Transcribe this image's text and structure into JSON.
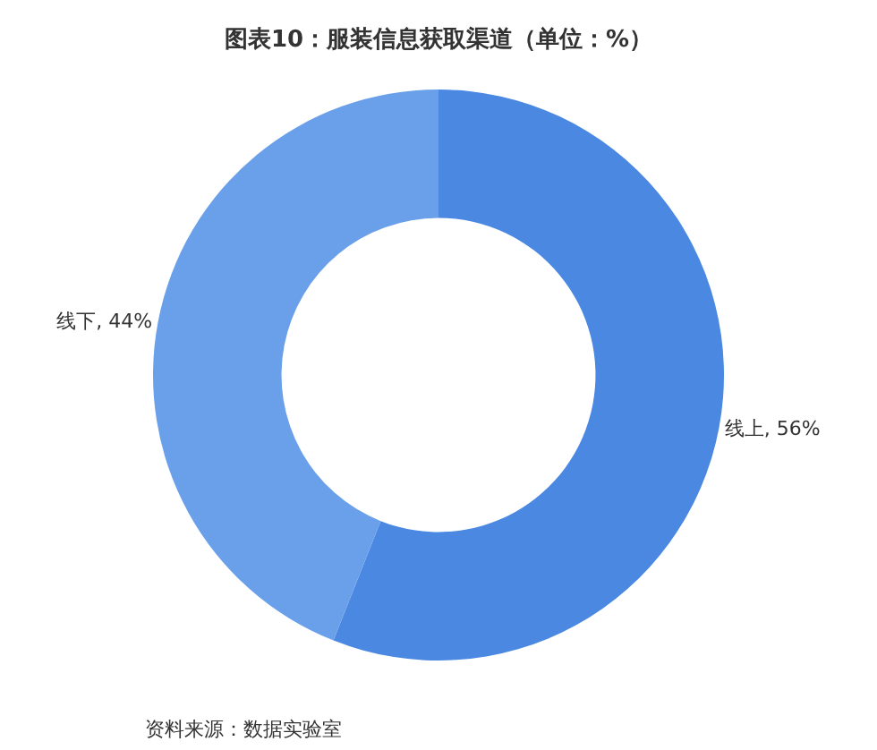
{
  "chart_data": {
    "type": "donut",
    "title": "图表10：服装信息获取渠道（单位：%）",
    "categories": [
      "线上",
      "线下"
    ],
    "values": [
      56,
      44
    ],
    "colors": [
      "#4a88e2",
      "#6aa0ea"
    ],
    "value_labels": [
      "56%",
      "44%"
    ],
    "legend": false,
    "annotations": [
      "资料来源：数据实验室"
    ]
  }
}
